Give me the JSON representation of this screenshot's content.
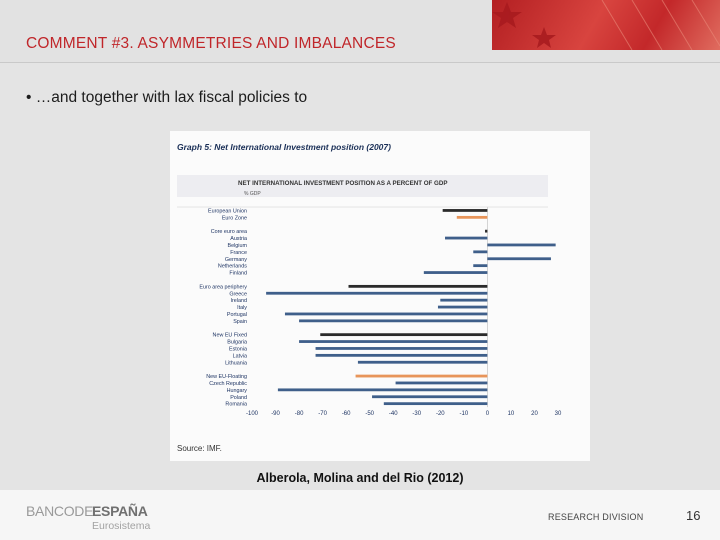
{
  "slide": {
    "title": "COMMENT #3. ASYMMETRIES AND IMBALANCES",
    "bullet": "• …and together with lax fiscal policies to",
    "caption": "Alberola, Molina and del Rio (2012)",
    "logo_light": "BANCODE",
    "logo_bold": "ESPAÑA",
    "logo_sub": "Eurosistema",
    "division": "RESEARCH DIVISION",
    "page_number": "16"
  },
  "chart_data": {
    "type": "bar",
    "orientation": "horizontal",
    "title": "Graph 5: Net International Investment position (2007)",
    "subtitle": "NET INTERNATIONAL INVESTMENT POSITION AS A PERCENT OF GDP",
    "unit_label": "% GDP",
    "source": "Source: IMF.",
    "xlim": [
      -100,
      30
    ],
    "xticks": [
      -100,
      -90,
      -80,
      -70,
      -60,
      -50,
      -40,
      -30,
      -20,
      -10,
      0,
      10,
      20,
      30
    ],
    "grid": false,
    "colors": {
      "aggregate": "#2b2b2b",
      "country": "#3f5f8a",
      "highlight": "#e8955a"
    },
    "categories": [
      "European Union",
      "Euro Zone",
      "",
      "Core euro area",
      "Austria",
      "Belgium",
      "France",
      "Germany",
      "Netherlands",
      "Finland",
      "",
      "Euro area periphery",
      "Greece",
      "Ireland",
      "Italy",
      "Portugal",
      "Spain",
      "",
      "New EU Fixed",
      "Bulgaria",
      "Estonia",
      "Latvia",
      "Lithuania",
      "",
      "New EU-Floating",
      "Czech Republic",
      "Hungary",
      "Poland",
      "Romania"
    ],
    "values": [
      -19,
      -13,
      null,
      -1,
      -18,
      29,
      -6,
      27,
      -6,
      -27,
      null,
      -59,
      -94,
      -20,
      -21,
      -86,
      -80,
      null,
      -71,
      -80,
      -73,
      -73,
      -55,
      null,
      -56,
      -39,
      -89,
      -49,
      -44
    ],
    "kinds": [
      "aggregate",
      "highlight",
      null,
      "aggregate",
      "country",
      "country",
      "country",
      "country",
      "country",
      "country",
      null,
      "aggregate",
      "country",
      "country",
      "country",
      "country",
      "country",
      null,
      "aggregate",
      "country",
      "country",
      "country",
      "country",
      null,
      "highlight",
      "country",
      "country",
      "country",
      "country"
    ]
  }
}
